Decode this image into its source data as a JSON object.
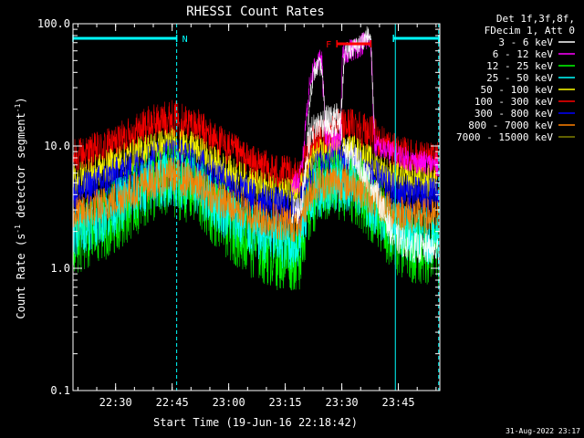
{
  "chart_data": {
    "type": "line",
    "title": "RHESSI Count Rates",
    "xlabel": "Start Time (19-Jun-16 22:18:42)",
    "ylabel_main": "Count Rate (s",
    "ylabel_sup1": "-1",
    "ylabel_mid": " detector segment",
    "ylabel_sup2": "-1",
    "ylabel_end": ")",
    "y_scale": "log",
    "ylim": [
      0.1,
      100
    ],
    "xlim": [
      "22:18:42",
      "23:56:00"
    ],
    "x_ticks": [
      "22:30",
      "22:45",
      "23:00",
      "23:15",
      "23:30",
      "23:45"
    ],
    "y_ticks": [
      "0.1",
      "1.0",
      "10.0",
      "100.0"
    ],
    "legend_header": [
      "Det 1f,3f,8f,",
      "FDecim 1, Att 0"
    ],
    "legend_position": "top-right",
    "series": [
      {
        "name": "3 - 6 keV",
        "color": "#ffffff"
      },
      {
        "name": "6 - 12 keV",
        "color": "#ff00ff"
      },
      {
        "name": "12 - 25 keV",
        "color": "#00ff00"
      },
      {
        "name": "25 - 50 keV",
        "color": "#00ffff"
      },
      {
        "name": "50 - 100 keV",
        "color": "#ffff00"
      },
      {
        "name": "100 - 300 keV",
        "color": "#ff0000"
      },
      {
        "name": "300 - 800 keV",
        "color": "#0000ff"
      },
      {
        "name": "800 - 7000 keV",
        "color": "#ff8000"
      },
      {
        "name": "7000 - 15000 keV",
        "color": "#808000"
      }
    ],
    "plotted_bands": [
      {
        "band": "red",
        "color": "#ff0000",
        "profile": [
          [
            0,
            8
          ],
          [
            10,
            10
          ],
          [
            20,
            15
          ],
          [
            26,
            17
          ],
          [
            32,
            15
          ],
          [
            40,
            10
          ],
          [
            48,
            7
          ],
          [
            55,
            6
          ],
          [
            60,
            5.6
          ],
          [
            61,
            7
          ],
          [
            64,
            11
          ],
          [
            70,
            14
          ],
          [
            75,
            15
          ],
          [
            80,
            12
          ],
          [
            85,
            9
          ],
          [
            90,
            8
          ],
          [
            97,
            7.5
          ]
        ],
        "spread": 1.25
      },
      {
        "band": "yellow",
        "color": "#ffff00",
        "profile": [
          [
            0,
            5.2
          ],
          [
            10,
            7
          ],
          [
            20,
            9.5
          ],
          [
            26,
            10.5
          ],
          [
            32,
            9.5
          ],
          [
            40,
            6.5
          ],
          [
            48,
            4.8
          ],
          [
            55,
            4.2
          ],
          [
            60,
            3.9
          ],
          [
            61,
            5
          ],
          [
            64,
            8
          ],
          [
            70,
            9.5
          ],
          [
            75,
            9
          ],
          [
            80,
            7
          ],
          [
            85,
            5.5
          ],
          [
            90,
            5.3
          ],
          [
            97,
            5
          ]
        ],
        "spread": 1.22
      },
      {
        "band": "blue",
        "color": "#0000ff",
        "profile": [
          [
            0,
            4
          ],
          [
            10,
            5.5
          ],
          [
            20,
            7.5
          ],
          [
            26,
            8.5
          ],
          [
            32,
            7.5
          ],
          [
            40,
            5.2
          ],
          [
            48,
            3.8
          ],
          [
            55,
            3.2
          ],
          [
            60,
            3
          ],
          [
            61,
            4
          ],
          [
            64,
            6.5
          ],
          [
            70,
            7.5
          ],
          [
            75,
            7
          ],
          [
            80,
            5.5
          ],
          [
            85,
            4.3
          ],
          [
            90,
            4
          ],
          [
            97,
            3.9
          ]
        ],
        "spread": 1.25
      },
      {
        "band": "green",
        "color": "#00ff00",
        "profile": [
          [
            0,
            1.6
          ],
          [
            10,
            2.5
          ],
          [
            20,
            4.5
          ],
          [
            26,
            5.2
          ],
          [
            32,
            4.5
          ],
          [
            40,
            2.5
          ],
          [
            48,
            1.6
          ],
          [
            55,
            1.3
          ],
          [
            60,
            1.3
          ],
          [
            61,
            2
          ],
          [
            64,
            4
          ],
          [
            70,
            5
          ],
          [
            75,
            4.5
          ],
          [
            80,
            3
          ],
          [
            85,
            1.8
          ],
          [
            90,
            1.5
          ],
          [
            97,
            1.4
          ]
        ],
        "spread": 1.55
      },
      {
        "band": "cyan",
        "color": "#00ffff",
        "profile": [
          [
            0,
            2
          ],
          [
            10,
            3
          ],
          [
            20,
            4.8
          ],
          [
            26,
            5.5
          ],
          [
            32,
            4.8
          ],
          [
            40,
            3
          ],
          [
            48,
            2
          ],
          [
            55,
            1.7
          ],
          [
            60,
            1.6
          ],
          [
            61,
            2.5
          ],
          [
            64,
            4.3
          ],
          [
            70,
            5
          ],
          [
            75,
            4.6
          ],
          [
            80,
            3.2
          ],
          [
            85,
            2.2
          ],
          [
            90,
            1.9
          ],
          [
            97,
            1.8
          ]
        ],
        "spread": 1.4
      },
      {
        "band": "orange",
        "color": "#ff8000",
        "profile": [
          [
            0,
            2.7
          ],
          [
            10,
            3.5
          ],
          [
            20,
            5
          ],
          [
            26,
            5.8
          ],
          [
            32,
            5
          ],
          [
            40,
            3.5
          ],
          [
            48,
            2.7
          ],
          [
            55,
            2.4
          ],
          [
            60,
            2.3
          ],
          [
            61,
            3
          ],
          [
            64,
            4.8
          ],
          [
            70,
            5.2
          ],
          [
            75,
            4.8
          ],
          [
            80,
            3.6
          ],
          [
            85,
            2.9
          ],
          [
            90,
            2.7
          ],
          [
            97,
            2.6
          ]
        ],
        "spread": 1.25
      },
      {
        "band": "white",
        "color": "#ffffff",
        "profile": [
          [
            58,
            3
          ],
          [
            60,
            3
          ],
          [
            61,
            4
          ],
          [
            62,
            8
          ],
          [
            63,
            13
          ],
          [
            65,
            15
          ],
          [
            67,
            16
          ],
          [
            69,
            17
          ],
          [
            70,
            17
          ],
          [
            71,
            13
          ],
          [
            72,
            9
          ],
          [
            75,
            8
          ],
          [
            80,
            4.5
          ],
          [
            85,
            1.8
          ],
          [
            90,
            1.5
          ],
          [
            97,
            1.4
          ]
        ],
        "spread": 1.2
      },
      {
        "band": "magenta",
        "color": "#ff00ff",
        "profile": [
          [
            58,
            5
          ],
          [
            60,
            5
          ],
          [
            61,
            8
          ],
          [
            62,
            20
          ],
          [
            63,
            35
          ],
          [
            64,
            45
          ],
          [
            65,
            50
          ],
          [
            66,
            48
          ],
          [
            67,
            12
          ],
          [
            68,
            11
          ],
          [
            70,
            11
          ],
          [
            71,
            12
          ],
          [
            71.5,
            55
          ],
          [
            73,
            60
          ],
          [
            75,
            63
          ],
          [
            77,
            70
          ],
          [
            78,
            72
          ],
          [
            79,
            70
          ],
          [
            80,
            10
          ],
          [
            84,
            9
          ],
          [
            90,
            7.5
          ],
          [
            97,
            7
          ]
        ],
        "spread": 1.15
      },
      {
        "band": "white-peak",
        "color": "#ffffff",
        "profile": [
          [
            62,
            10
          ],
          [
            63,
            28
          ],
          [
            64,
            40
          ],
          [
            65,
            45
          ],
          [
            66,
            44
          ],
          [
            67,
            14
          ],
          [
            70,
            14
          ],
          [
            71,
            16
          ],
          [
            72,
            58
          ],
          [
            74,
            62
          ],
          [
            76,
            68
          ],
          [
            78,
            80
          ],
          [
            79,
            75
          ],
          [
            80,
            12
          ]
        ],
        "spread": 1.12
      }
    ],
    "overlays": {
      "night_label": "N",
      "flare_label": "F",
      "attenuator_bars": [
        {
          "label": "N",
          "from_min": 0,
          "to_min": 27.5,
          "color": "#00ffff"
        },
        {
          "label": "F",
          "from_min": 70,
          "to_min": 79,
          "color": "#ff0000"
        },
        {
          "label": "",
          "from_min": 85,
          "to_min": 97,
          "color": "#00ffff"
        }
      ],
      "vlines": [
        {
          "min": 0,
          "color": "#00ffff",
          "style": "solid"
        },
        {
          "min": 27.5,
          "color": "#00ffff",
          "style": "dashed"
        },
        {
          "min": 85.5,
          "color": "#00ffff",
          "style": "solid"
        },
        {
          "min": 97,
          "color": "#00ffff",
          "style": "dashed"
        }
      ]
    }
  },
  "footer": {
    "timestamp": "31-Aug-2022 23:17"
  }
}
